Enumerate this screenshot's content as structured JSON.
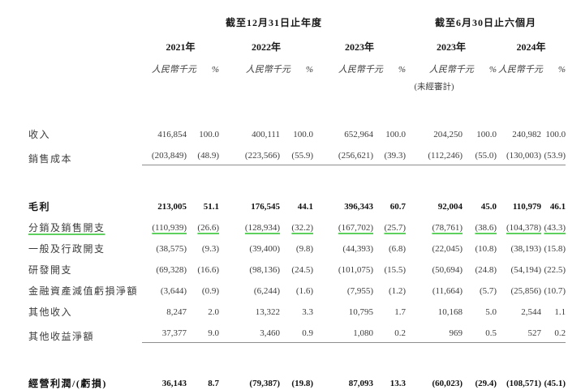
{
  "colors": {
    "background": "#ffffff",
    "text": "#3c3c3c",
    "text_bold": "#121212",
    "rule_gray": "#8f8f8f",
    "green_underline": "#5dd05d"
  },
  "table": {
    "header": {
      "period_groups": [
        {
          "title": "截至12月31日止年度",
          "year_span": 3
        },
        {
          "title": "截至6月30日止六個月",
          "year_span": 2
        }
      ],
      "years": [
        "2021年",
        "2022年",
        "2023年",
        "2023年",
        "2024年"
      ],
      "unit_label": "人民幣千元",
      "percent_label": "%",
      "unaudited_note": "(未經審計)",
      "unaudited_under_year_index": 3
    },
    "rows": [
      {
        "label": "收入",
        "style": "normal",
        "values": [
          "416,854",
          "100.0",
          "400,111",
          "100.0",
          "652,964",
          "100.0",
          "204,250",
          "100.0",
          "240,982",
          "100.0"
        ]
      },
      {
        "label": "銷售成本",
        "style": "normal",
        "rule_below": true,
        "values": [
          "(203,849)",
          "(48.9)",
          "(223,566)",
          "(55.9)",
          "(256,621)",
          "(39.3)",
          "(112,246)",
          "(55.0)",
          "(130,003)",
          "(53.9)"
        ]
      },
      {
        "spacer": 33
      },
      {
        "label": "毛利",
        "style": "bold",
        "values": [
          "213,005",
          "51.1",
          "176,545",
          "44.1",
          "396,343",
          "60.7",
          "92,004",
          "45.0",
          "110,979",
          "46.1"
        ]
      },
      {
        "label": "分銷及銷售開支",
        "style": "green",
        "values": [
          "(110,939)",
          "(26.6)",
          "(128,934)",
          "(32.2)",
          "(167,702)",
          "(25.7)",
          "(78,761)",
          "(38.6)",
          "(104,378)",
          "(43.3)"
        ]
      },
      {
        "label": "一般及行政開支",
        "style": "normal",
        "values": [
          "(38,575)",
          "(9.3)",
          "(39,400)",
          "(9.8)",
          "(44,393)",
          "(6.8)",
          "(22,045)",
          "(10.8)",
          "(38,193)",
          "(15.8)"
        ]
      },
      {
        "label": "研發開支",
        "style": "normal",
        "values": [
          "(69,328)",
          "(16.6)",
          "(98,136)",
          "(24.5)",
          "(101,075)",
          "(15.5)",
          "(50,694)",
          "(24.8)",
          "(54,194)",
          "(22.5)"
        ]
      },
      {
        "label": "金融資產減值虧損淨額",
        "style": "normal",
        "values": [
          "(3,644)",
          "(0.9)",
          "(6,244)",
          "(1.6)",
          "(7,955)",
          "(1.2)",
          "(11,664)",
          "(5.7)",
          "(25,856)",
          "(10.7)"
        ]
      },
      {
        "label": "其他收入",
        "style": "normal",
        "values": [
          "8,247",
          "2.0",
          "13,322",
          "3.3",
          "10,795",
          "1.7",
          "10,168",
          "5.0",
          "2,544",
          "1.1"
        ]
      },
      {
        "label": "其他收益淨額",
        "style": "normal",
        "rule_below": true,
        "values": [
          "37,377",
          "9.0",
          "3,460",
          "0.9",
          "1,080",
          "0.2",
          "969",
          "0.5",
          "527",
          "0.2"
        ]
      },
      {
        "spacer": 32
      },
      {
        "label": "經營利潤/(虧損)",
        "style": "bold",
        "values": [
          "36,143",
          "8.7",
          "(79,387)",
          "(19.8)",
          "87,093",
          "13.3",
          "(60,023)",
          "(29.4)",
          "(108,571)",
          "(45.1)"
        ]
      }
    ]
  }
}
